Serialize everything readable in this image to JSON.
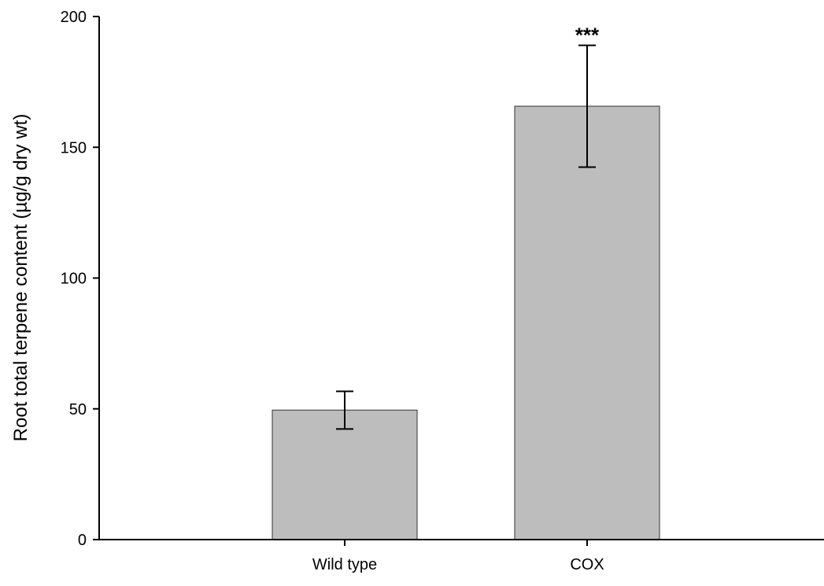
{
  "chart_data": {
    "type": "bar",
    "title": "",
    "xlabel": "",
    "ylabel": "Root total terpene content (µg/g dry wt)",
    "categories": [
      "Wild type",
      "COX"
    ],
    "values": [
      49.5,
      165.7
    ],
    "error": [
      7.2,
      23.3
    ],
    "annotations": [
      {
        "category": "COX",
        "text": "***"
      }
    ],
    "ylim": [
      0,
      200
    ],
    "yticks": [
      0,
      50,
      100,
      150,
      200
    ],
    "ytick_labels": [
      "0",
      "50",
      "100",
      "150",
      "200"
    ],
    "bar_color": "#bdbdbd",
    "bar_edge_color": "#4d4d4d",
    "axis_color": "#000000",
    "grid": false,
    "legend": "none"
  }
}
